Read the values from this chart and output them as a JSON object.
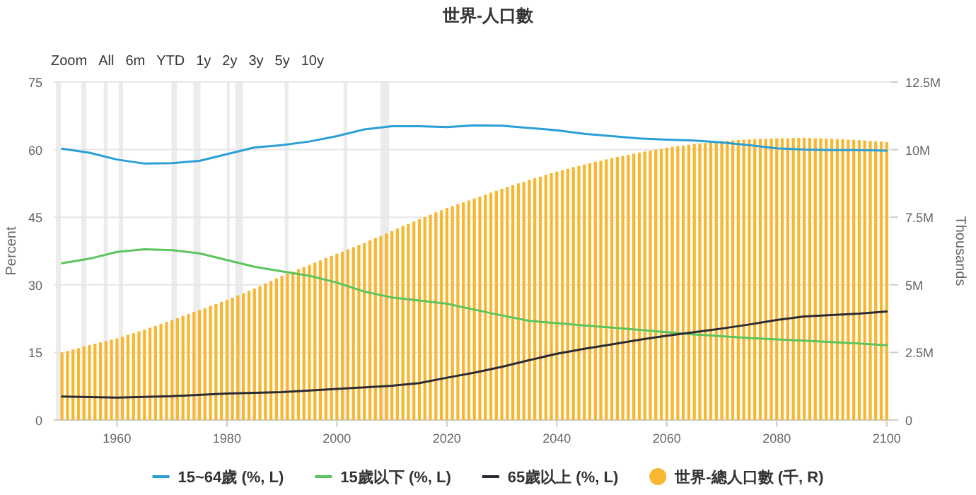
{
  "chart_data": {
    "type": "line",
    "title": "世界-人口數",
    "ylabel": "Percent",
    "y2label": "Thousands",
    "annotations": [
      "Zoom",
      "All",
      "6m",
      "YTD",
      "1y",
      "2y",
      "3y",
      "5y",
      "10y"
    ],
    "xlim": [
      1948.5,
      2100.8
    ],
    "xticks": [
      1960,
      1980,
      2000,
      2020,
      2040,
      2060,
      2080,
      2100
    ],
    "ylim": [
      0,
      75
    ],
    "yticks": [
      0,
      15,
      30,
      45,
      60,
      75
    ],
    "y2lim": [
      0,
      12500000
    ],
    "y2ticks": [
      {
        "value": 0,
        "label": "0"
      },
      {
        "value": 2500000,
        "label": "2.5M"
      },
      {
        "value": 5000000,
        "label": "5M"
      },
      {
        "value": 7500000,
        "label": "7.5M"
      },
      {
        "value": 10000000,
        "label": "10M"
      },
      {
        "value": 12500000,
        "label": "12.5M"
      }
    ],
    "grid": "y",
    "legend": "bottom",
    "marker": "none",
    "line_style": "solid",
    "bands": [
      {
        "axis": "x",
        "from": 1948.9,
        "to": 1949.8,
        "color": "#ececec"
      },
      {
        "axis": "x",
        "from": 1953.5,
        "to": 1954.4,
        "color": "#ececec"
      },
      {
        "axis": "x",
        "from": 1957.6,
        "to": 1958.3,
        "color": "#ececec"
      },
      {
        "axis": "x",
        "from": 1960.3,
        "to": 1961.1,
        "color": "#ececec"
      },
      {
        "axis": "x",
        "from": 1969.9,
        "to": 1970.9,
        "color": "#ececec"
      },
      {
        "axis": "x",
        "from": 1973.9,
        "to": 1975.2,
        "color": "#ececec"
      },
      {
        "axis": "x",
        "from": 1980.0,
        "to": 1980.5,
        "color": "#ececec"
      },
      {
        "axis": "x",
        "from": 1981.5,
        "to": 1982.9,
        "color": "#ececec"
      },
      {
        "axis": "x",
        "from": 1990.5,
        "to": 1991.2,
        "color": "#ececec"
      },
      {
        "axis": "x",
        "from": 2001.2,
        "to": 2001.9,
        "color": "#ececec"
      },
      {
        "axis": "x",
        "from": 2007.9,
        "to": 2009.5,
        "color": "#ececec"
      }
    ],
    "series": [
      {
        "name": "15~64歲 (%, L)",
        "color": "#2a9fd6",
        "x": [
          1950,
          1955,
          1960,
          1965,
          1970,
          1975,
          1980,
          1985,
          1990,
          1995,
          2000,
          2005,
          2010,
          2015,
          2020,
          2025,
          2030,
          2035,
          2040,
          2045,
          2050,
          2055,
          2060,
          2065,
          2070,
          2075,
          2080,
          2085,
          2090,
          2095,
          2100
        ],
        "values": [
          60.2,
          59.3,
          57.8,
          56.9,
          57,
          57.5,
          59,
          60.5,
          61,
          61.8,
          63,
          64.5,
          65.2,
          65.2,
          65,
          65.4,
          65.3,
          64.8,
          64.3,
          63.5,
          63,
          62.5,
          62.2,
          62,
          61.6,
          61,
          60.3,
          60,
          59.9,
          59.9,
          59.8
        ]
      },
      {
        "name": "15歲以下 (%, L)",
        "color": "#5cc45c",
        "x": [
          1950,
          1955,
          1960,
          1965,
          1970,
          1975,
          1980,
          1985,
          1990,
          1995,
          2000,
          2005,
          2010,
          2015,
          2020,
          2025,
          2030,
          2035,
          2040,
          2045,
          2050,
          2055,
          2060,
          2065,
          2070,
          2075,
          2080,
          2085,
          2090,
          2095,
          2100
        ],
        "values": [
          34.8,
          35.8,
          37.3,
          37.9,
          37.7,
          37,
          35.5,
          34,
          33,
          32,
          30.5,
          28.5,
          27.2,
          26.5,
          25.8,
          24.5,
          23.2,
          22,
          21.5,
          21,
          20.5,
          20,
          19.5,
          19,
          18.6,
          18.2,
          17.9,
          17.6,
          17.3,
          17,
          16.6
        ]
      },
      {
        "name": "65歲以上 (%, L)",
        "color": "#2b2b33",
        "x": [
          1950,
          1960,
          1970,
          1980,
          1990,
          2000,
          2010,
          2015,
          2020,
          2025,
          2030,
          2035,
          2040,
          2045,
          2050,
          2055,
          2060,
          2065,
          2070,
          2075,
          2080,
          2085,
          2090,
          2095,
          2100
        ],
        "values": [
          5.2,
          5,
          5.3,
          5.9,
          6.2,
          6.9,
          7.6,
          8.2,
          9.4,
          10.5,
          11.8,
          13.3,
          14.7,
          15.8,
          16.8,
          17.8,
          18.7,
          19.5,
          20.3,
          21.2,
          22.2,
          23,
          23.3,
          23.6,
          24.1
        ]
      },
      {
        "name": "世界-總人口數 (千, R)",
        "type": "bar",
        "axis": "y2",
        "color": "#f7b731",
        "x": [
          1950,
          1951,
          1952,
          1953,
          1954,
          1955,
          1956,
          1957,
          1958,
          1959,
          1960,
          1961,
          1962,
          1963,
          1964,
          1965,
          1966,
          1967,
          1968,
          1969,
          1970,
          1971,
          1972,
          1973,
          1974,
          1975,
          1976,
          1977,
          1978,
          1979,
          1980,
          1981,
          1982,
          1983,
          1984,
          1985,
          1986,
          1987,
          1988,
          1989,
          1990,
          1991,
          1992,
          1993,
          1994,
          1995,
          1996,
          1997,
          1998,
          1999,
          2000,
          2001,
          2002,
          2003,
          2004,
          2005,
          2006,
          2007,
          2008,
          2009,
          2010,
          2011,
          2012,
          2013,
          2014,
          2015,
          2016,
          2017,
          2018,
          2019,
          2020,
          2021,
          2022,
          2023,
          2024,
          2025,
          2026,
          2027,
          2028,
          2029,
          2030,
          2031,
          2032,
          2033,
          2034,
          2035,
          2036,
          2037,
          2038,
          2039,
          2040,
          2041,
          2042,
          2043,
          2044,
          2045,
          2046,
          2047,
          2048,
          2049,
          2050,
          2051,
          2052,
          2053,
          2054,
          2055,
          2056,
          2057,
          2058,
          2059,
          2060,
          2061,
          2062,
          2063,
          2064,
          2065,
          2066,
          2067,
          2068,
          2069,
          2070,
          2071,
          2072,
          2073,
          2074,
          2075,
          2076,
          2077,
          2078,
          2079,
          2080,
          2081,
          2082,
          2083,
          2084,
          2085,
          2086,
          2087,
          2088,
          2089,
          2090,
          2091,
          2092,
          2093,
          2094,
          2095,
          2096,
          2097,
          2098,
          2099,
          2100
        ],
        "values": [
          2500000,
          2550000,
          2610000,
          2660000,
          2720000,
          2770000,
          2820000,
          2870000,
          2920000,
          2970000,
          3020000,
          3080000,
          3150000,
          3210000,
          3280000,
          3340000,
          3410000,
          3480000,
          3560000,
          3630000,
          3700000,
          3770000,
          3850000,
          3920000,
          4000000,
          4070000,
          4140000,
          4220000,
          4290000,
          4370000,
          4440000,
          4520000,
          4610000,
          4690000,
          4780000,
          4860000,
          4950000,
          5050000,
          5140000,
          5240000,
          5330000,
          5410000,
          5490000,
          5580000,
          5660000,
          5740000,
          5820000,
          5900000,
          5990000,
          6070000,
          6150000,
          6230000,
          6310000,
          6390000,
          6470000,
          6550000,
          6640000,
          6730000,
          6810000,
          6900000,
          6990000,
          7080000,
          7170000,
          7250000,
          7340000,
          7430000,
          7510000,
          7590000,
          7680000,
          7760000,
          7840000,
          7910000,
          7980000,
          8050000,
          8120000,
          8190000,
          8260000,
          8330000,
          8410000,
          8480000,
          8550000,
          8620000,
          8680000,
          8750000,
          8810000,
          8880000,
          8940000,
          9000000,
          9070000,
          9130000,
          9190000,
          9240000,
          9290000,
          9350000,
          9400000,
          9450000,
          9500000,
          9550000,
          9590000,
          9640000,
          9690000,
          9730000,
          9770000,
          9810000,
          9850000,
          9890000,
          9930000,
          9960000,
          10000000,
          10030000,
          10070000,
          10100000,
          10130000,
          10150000,
          10180000,
          10210000,
          10230000,
          10250000,
          10280000,
          10300000,
          10320000,
          10330000,
          10340000,
          10360000,
          10370000,
          10380000,
          10390000,
          10400000,
          10400000,
          10410000,
          10420000,
          10420000,
          10420000,
          10430000,
          10430000,
          10430000,
          10430000,
          10420000,
          10420000,
          10410000,
          10400000,
          10390000,
          10380000,
          10370000,
          10360000,
          10350000,
          10340000,
          10320000,
          10310000,
          10300000,
          10280000
        ]
      }
    ]
  }
}
